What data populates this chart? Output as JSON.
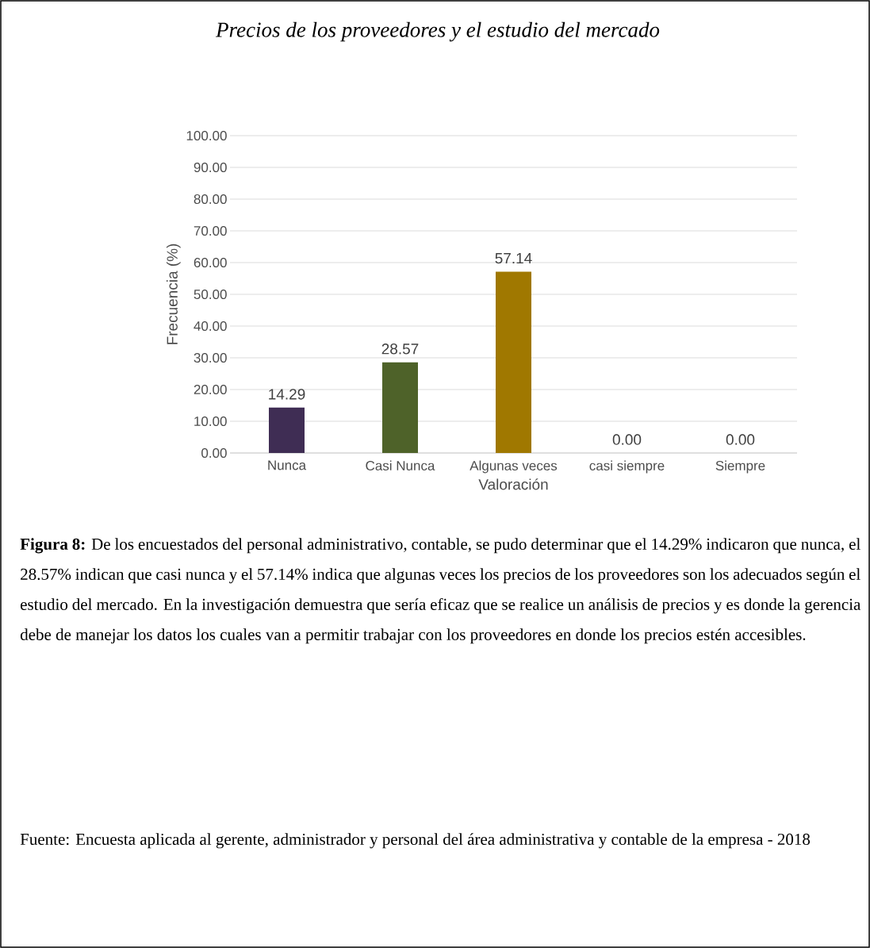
{
  "chart_data": {
    "type": "bar",
    "title": "Precios de los proveedores y el estudio del mercado",
    "xlabel": "Valoración",
    "ylabel": "Frecuencia (%)",
    "categories": [
      "Nunca",
      "Casi Nunca",
      "Algunas veces",
      "casi siempre",
      "Siempre"
    ],
    "values": [
      14.29,
      28.57,
      57.14,
      0,
      0
    ],
    "colors": [
      "#3f2d54",
      "#4e6229",
      "#a07800",
      "#7f7f7f",
      "#7f7f7f"
    ],
    "value_labels": [
      "14.29",
      "28.57",
      "57.14",
      "0.00",
      "0.00"
    ],
    "ylim": [
      0,
      100
    ],
    "yticks": [
      {
        "value": 0,
        "label": "0.00"
      },
      {
        "value": 10,
        "label": "10.00"
      },
      {
        "value": 20,
        "label": "20.00"
      },
      {
        "value": 30,
        "label": "30.00"
      },
      {
        "value": 40,
        "label": "40.00"
      },
      {
        "value": 50,
        "label": "50.00"
      },
      {
        "value": 60,
        "label": "60.00"
      },
      {
        "value": 70,
        "label": "70.00"
      },
      {
        "value": 80,
        "label": "80.00"
      },
      {
        "value": 90,
        "label": "90.00"
      },
      {
        "value": 100,
        "label": "100.00"
      }
    ],
    "grid": "y",
    "annotations": [
      "**Figura 8:** De los encuestados del personal administrativo, contable, se pudo determinar que el 14.29% indicaron que nunca, el 28.57% indican que casi nunca y el 57.14% indica que algunas veces los precios de los proveedores son los adecuados según el estudio del mercado. En la investigación demuestra que sería eficaz que se realice un análisis de precios y es donde la gerencia debe de manejar los datos los cuales van a permitir trabajar con los proveedores en donde los precios estén accesibles.",
      "Fuente: Encuesta aplicada al gerente, administrador y personal del área administrativa y contable de la empresa - 2018"
    ]
  }
}
